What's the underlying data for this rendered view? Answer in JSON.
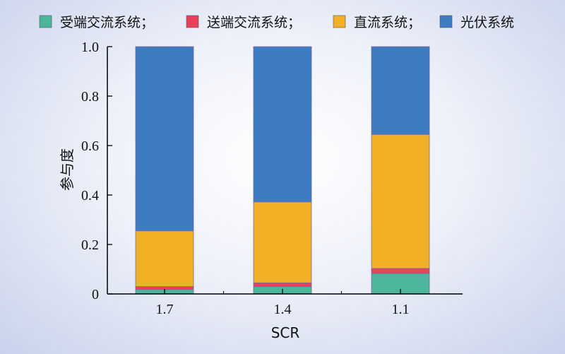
{
  "chart_data": {
    "type": "bar",
    "stacked": true,
    "categories": [
      "1.7",
      "1.4",
      "1.1"
    ],
    "series": [
      {
        "name": "受端交流系统；",
        "color": "#4db59b",
        "values": [
          0.018,
          0.03,
          0.083
        ]
      },
      {
        "name": "送端交流系统；",
        "color": "#e8415b",
        "values": [
          0.012,
          0.015,
          0.02
        ]
      },
      {
        "name": "直流系统；",
        "color": "#f2b026",
        "values": [
          0.225,
          0.327,
          0.542
        ]
      },
      {
        "name": "光伏系统",
        "color": "#3d7cc0",
        "values": [
          0.745,
          0.628,
          0.355
        ]
      }
    ],
    "xlabel": "SCR",
    "ylabel": "参与度",
    "ylim": [
      0,
      1.0
    ],
    "yticks": [
      "0",
      "0.2",
      "0.4",
      "0.6",
      "0.8",
      "1.0"
    ],
    "grid": false,
    "legend": "top"
  }
}
